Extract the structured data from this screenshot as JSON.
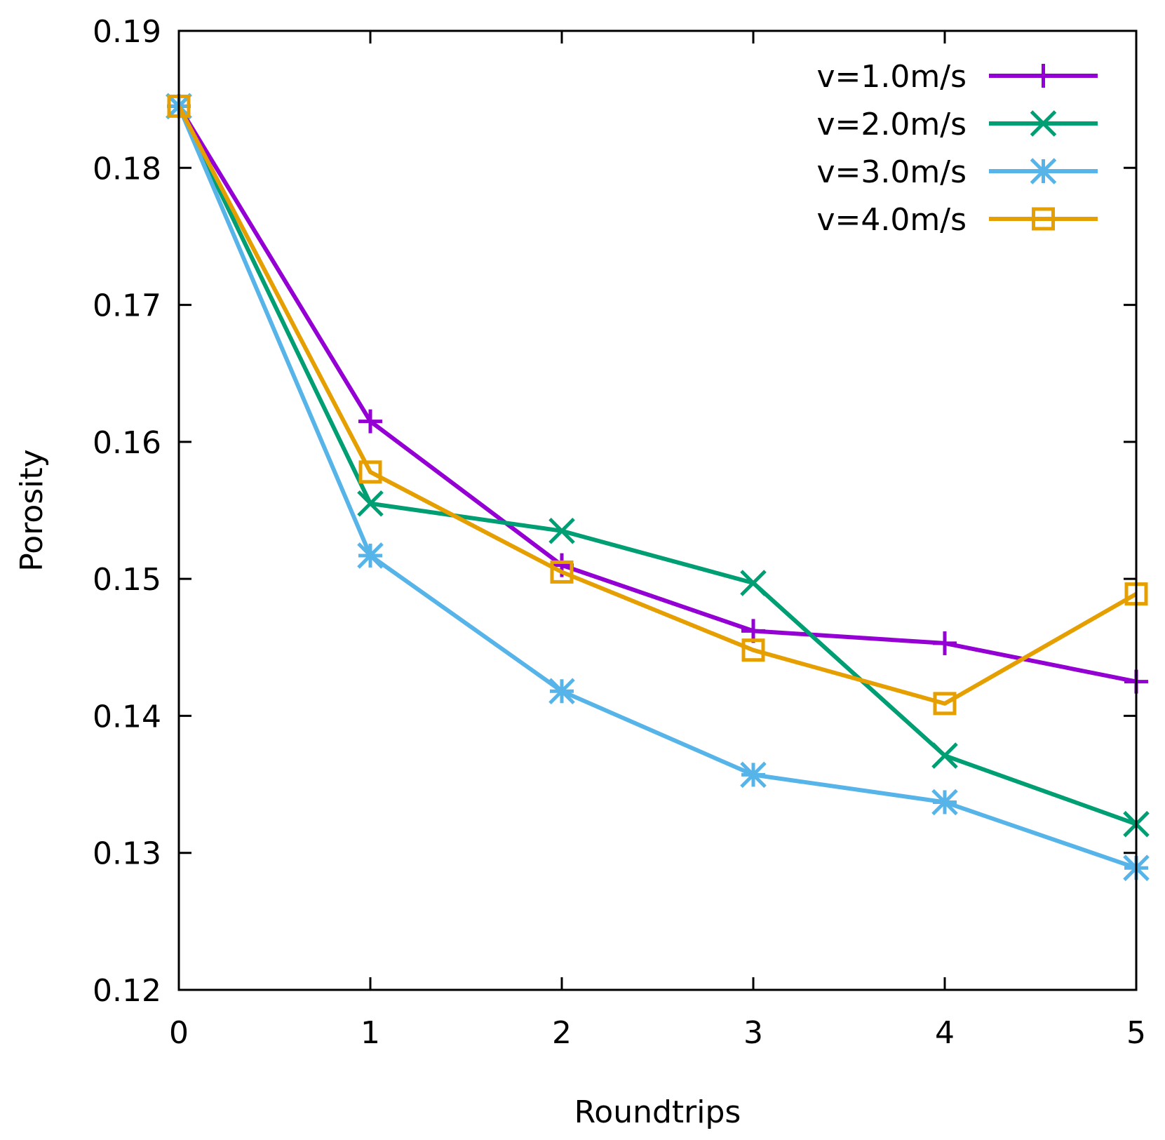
{
  "chart_data": {
    "type": "line",
    "title": "",
    "xlabel": "Roundtrips",
    "ylabel": "Porosity",
    "x": [
      0,
      1,
      2,
      3,
      4,
      5
    ],
    "xlim": [
      0,
      5
    ],
    "ylim": [
      0.12,
      0.19
    ],
    "xticks": [
      "0",
      "1",
      "2",
      "3",
      "4",
      "5"
    ],
    "yticks": [
      "0.12",
      "0.13",
      "0.14",
      "0.15",
      "0.16",
      "0.17",
      "0.18",
      "0.19"
    ],
    "grid": false,
    "legend_position": "top-right",
    "series": [
      {
        "name": "v=1.0m/s",
        "color": "#9400d3",
        "marker": "plus",
        "values": [
          0.1845,
          0.1615,
          0.151,
          0.1462,
          0.1453,
          0.1425
        ]
      },
      {
        "name": "v=2.0m/s",
        "color": "#009e73",
        "marker": "cross",
        "values": [
          0.1845,
          0.1555,
          0.1535,
          0.1497,
          0.1371,
          0.1321
        ]
      },
      {
        "name": "v=3.0m/s",
        "color": "#56b4e9",
        "marker": "star",
        "values": [
          0.1845,
          0.1517,
          0.1418,
          0.1357,
          0.1337,
          0.1289
        ]
      },
      {
        "name": "v=4.0m/s",
        "color": "#e69f00",
        "marker": "square",
        "values": [
          0.1845,
          0.1578,
          0.1505,
          0.1448,
          0.1409,
          0.1489
        ]
      }
    ]
  }
}
